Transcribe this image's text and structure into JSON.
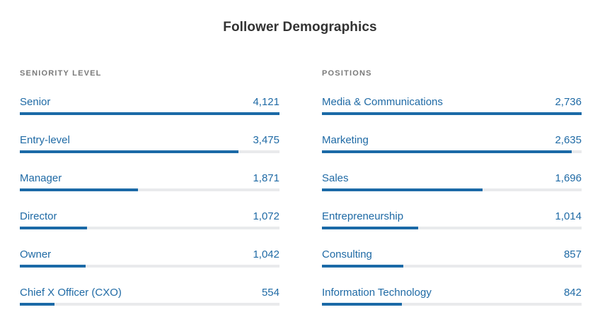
{
  "title": "Follower Demographics",
  "colors": {
    "bar_fill": "#1b6aa7",
    "bar_track": "#e9eaec",
    "label": "#1f6aa5",
    "heading": "#7a7a7a",
    "title": "#333333"
  },
  "chart_data": [
    {
      "type": "bar",
      "orientation": "horizontal",
      "title": "SENIORITY LEVEL",
      "categories": [
        "Senior",
        "Entry-level",
        "Manager",
        "Director",
        "Owner",
        "Chief X Officer (CXO)"
      ],
      "values": [
        4121,
        3475,
        1871,
        1072,
        1042,
        554
      ],
      "value_labels": [
        "4,121",
        "3,475",
        "1,871",
        "1,072",
        "1,042",
        "554"
      ],
      "xlim": [
        0,
        4121
      ]
    },
    {
      "type": "bar",
      "orientation": "horizontal",
      "title": "POSITIONS",
      "categories": [
        "Media & Communications",
        "Marketing",
        "Sales",
        "Entrepreneurship",
        "Consulting",
        "Information Technology"
      ],
      "values": [
        2736,
        2635,
        1696,
        1014,
        857,
        842
      ],
      "value_labels": [
        "2,736",
        "2,635",
        "1,696",
        "1,014",
        "857",
        "842"
      ],
      "xlim": [
        0,
        2736
      ]
    }
  ]
}
